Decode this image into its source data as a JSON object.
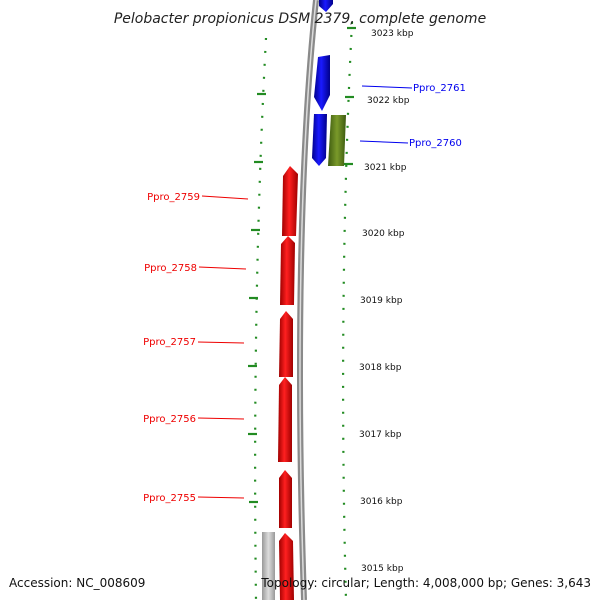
{
  "title": "Pelobacter propionicus DSM 2379, complete genome",
  "accession": "Accession: NC_008609",
  "topology_line": "Topology: circular; Length: 4,008,000 bp; Genes: 3,643",
  "kbp_labels": [
    "3023 kbp",
    "3022 kbp",
    "3021 kbp",
    "3020 kbp",
    "3019 kbp",
    "3018 kbp",
    "3017 kbp",
    "3016 kbp",
    "3015 kbp"
  ],
  "genes": [
    {
      "label": "Ppro_2761",
      "strand": "forward",
      "color": "#0000ee"
    },
    {
      "label": "Ppro_2760",
      "strand": "forward",
      "color": "#0000ee"
    },
    {
      "label": "Ppro_2759",
      "strand": "reverse",
      "color": "#ee0000"
    },
    {
      "label": "Ppro_2758",
      "strand": "reverse",
      "color": "#ee0000"
    },
    {
      "label": "Ppro_2757",
      "strand": "reverse",
      "color": "#ee0000"
    },
    {
      "label": "Ppro_2756",
      "strand": "reverse",
      "color": "#ee0000"
    },
    {
      "label": "Ppro_2755",
      "strand": "reverse",
      "color": "#ee0000"
    }
  ],
  "colors": {
    "forward_gene": "#0000ee",
    "reverse_gene": "#ee0000",
    "other_feature": "#6b8e23",
    "backbone": "#8a8a8a",
    "tick_marks": "#228b22",
    "pseudo_feature": "#bbbbbb"
  }
}
